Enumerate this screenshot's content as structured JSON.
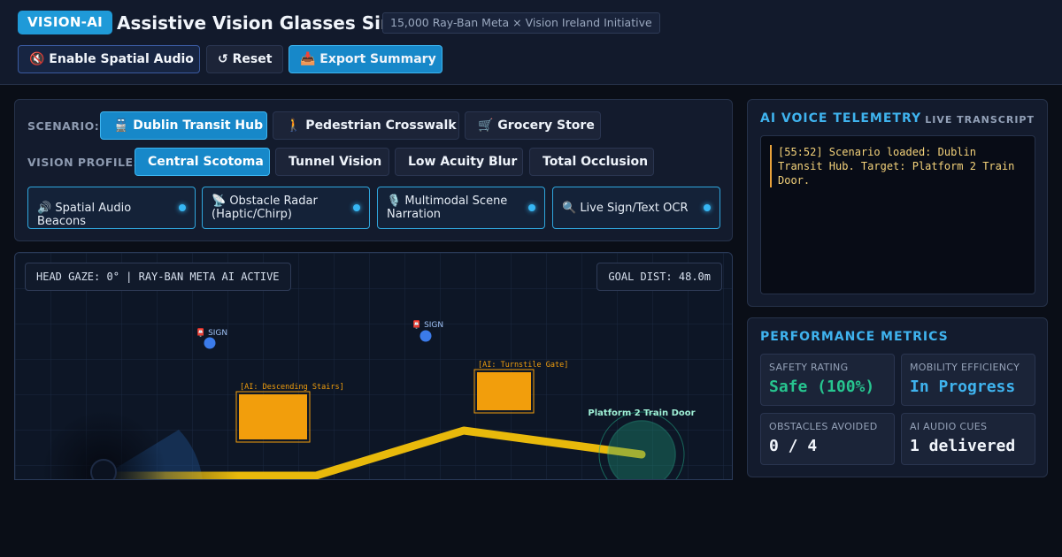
{
  "header": {
    "logo": "VISION-AI",
    "title": "Assistive Vision Glasses Sim",
    "badge": "15,000 Ray-Ban Meta × Vision Ireland Initiative",
    "buttons": {
      "audio": "🔇 Enable Spatial Audio",
      "reset": "↺ Reset",
      "export": "📥 Export Summary"
    }
  },
  "controls": {
    "scenario_label": "SCENARIO:",
    "scenarios": [
      "🚆 Dublin Transit Hub",
      "🚶 Pedestrian Crosswalk",
      "🛒 Grocery Store"
    ],
    "active_scenario": 0,
    "profile_label": "VISION PROFILE:",
    "profiles": [
      "Central Scotoma",
      "Tunnel Vision",
      "Low Acuity Blur",
      "Total Occlusion"
    ],
    "active_profile": 0,
    "toggles": [
      "🔊 Spatial Audio Beacons",
      "📡 Obstacle Radar (Haptic/Chirp)",
      "🎙️ Multimodal Scene Narration",
      "🔍 Live Sign/Text OCR"
    ]
  },
  "sim": {
    "gaze_readout": "HEAD GAZE: 0° | RAY-BAN META AI ACTIVE",
    "goal_readout": "GOAL DIST: 48.0m",
    "sign_label": "📮 SIGN",
    "obstacle_stairs": "[AI: Descending Stairs]",
    "obstacle_turnstile": "[AI: Turnstile Gate]",
    "target_label": "Platform 2 Train Door",
    "colors": {
      "path": "#e8b90b",
      "obstacle": "#f29e0c",
      "target": "#1f9f7e",
      "sign": "#3b7bea"
    }
  },
  "telemetry": {
    "title": "AI VOICE TELEMETRY",
    "live_label": "LIVE TRANSCRIPT",
    "entries": [
      "[55:52] Scenario loaded: Dublin Transit Hub. Target: Platform 2 Train Door."
    ]
  },
  "metrics": {
    "title": "PERFORMANCE METRICS",
    "items": [
      {
        "label": "SAFETY RATING",
        "value": "Safe (100%)",
        "color": "#27c48f"
      },
      {
        "label": "MOBILITY EFFICIENCY",
        "value": "In Progress",
        "color": "#3fb3ee"
      },
      {
        "label": "OBSTACLES AVOIDED",
        "value": "0 / 4",
        "color": "#f1f5fb"
      },
      {
        "label": "AI AUDIO CUES",
        "value": "1 delivered",
        "color": "#f1f5fb"
      }
    ]
  }
}
